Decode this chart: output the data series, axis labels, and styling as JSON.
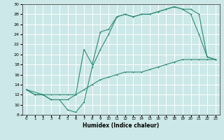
{
  "title": "",
  "xlabel": "Humidex (Indice chaleur)",
  "ylabel": "",
  "bg_color": "#cce8e8",
  "grid_color": "#ffffff",
  "line_color": "#2e8b74",
  "xlim": [
    -0.5,
    23.5
  ],
  "ylim": [
    8,
    30
  ],
  "xticks": [
    0,
    1,
    2,
    3,
    4,
    5,
    6,
    7,
    8,
    9,
    10,
    11,
    12,
    13,
    14,
    15,
    16,
    17,
    18,
    19,
    20,
    21,
    22,
    23
  ],
  "yticks": [
    8,
    10,
    12,
    14,
    16,
    18,
    20,
    22,
    24,
    26,
    28,
    30
  ],
  "line1_x": [
    0,
    1,
    2,
    3,
    4,
    5,
    6,
    7,
    8,
    9,
    10,
    11,
    12,
    13,
    14,
    15,
    16,
    17,
    18,
    19,
    20,
    21,
    22,
    23
  ],
  "line1_y": [
    13,
    12,
    12,
    11,
    11,
    9,
    8.5,
    10.5,
    17.5,
    21,
    24,
    27.5,
    28,
    27.5,
    28,
    28,
    28.5,
    29,
    29.5,
    29,
    28,
    24,
    19.5,
    19
  ],
  "line2_x": [
    0,
    1,
    2,
    3,
    4,
    5,
    6,
    7,
    8,
    9,
    10,
    11,
    12,
    13,
    14,
    15,
    16,
    17,
    18,
    19,
    20,
    21,
    22,
    23
  ],
  "line2_y": [
    13,
    12,
    12,
    12,
    12,
    12,
    12,
    13,
    14,
    15,
    15.5,
    16,
    16.5,
    16.5,
    16.5,
    17,
    17.5,
    18,
    18.5,
    19,
    19,
    19,
    19,
    19
  ],
  "line3_x": [
    0,
    2,
    3,
    5,
    6,
    7,
    8,
    9,
    10,
    11,
    12,
    13,
    14,
    15,
    16,
    17,
    18,
    19,
    20,
    21,
    22,
    23
  ],
  "line3_y": [
    13,
    12,
    11,
    11,
    12,
    21,
    18,
    24.5,
    25,
    27.5,
    28,
    27.5,
    28,
    28,
    28.5,
    29,
    29.5,
    29,
    29,
    28,
    19.5,
    19
  ]
}
